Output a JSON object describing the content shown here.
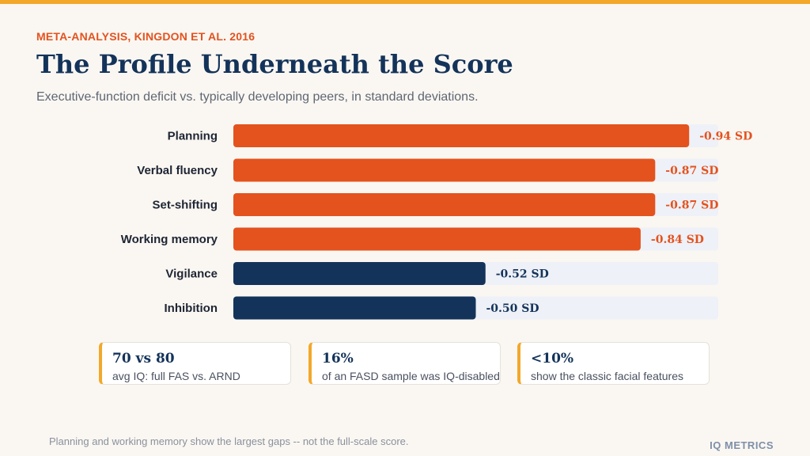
{
  "header": {
    "eyebrow": "META-ANALYSIS, KINGDON ET AL. 2016",
    "title": "The Profile Underneath the Score",
    "subtitle": "Executive-function deficit vs. typically developing peers, in standard deviations."
  },
  "chart_data": {
    "type": "bar",
    "orientation": "horizontal",
    "title": "",
    "xlabel": "",
    "ylabel": "",
    "unit": "SD",
    "categories": [
      "Planning",
      "Verbal fluency",
      "Set-shifting",
      "Working memory",
      "Vigilance",
      "Inhibition"
    ],
    "values": [
      -0.94,
      -0.87,
      -0.87,
      -0.84,
      -0.52,
      -0.5
    ],
    "value_labels": [
      "-0.94 SD",
      "-0.87 SD",
      "-0.87 SD",
      "-0.84 SD",
      "-0.52 SD",
      "-0.50 SD"
    ],
    "highlight": [
      true,
      true,
      true,
      true,
      false,
      false
    ],
    "xlim": [
      0,
      1.0
    ],
    "grid": false,
    "colors": {
      "highlight": "#E4521E",
      "normal": "#14335A",
      "track": "#EEF1F7"
    }
  },
  "stats": [
    {
      "value": "70 vs 80",
      "label": "avg IQ: full FAS vs. ARND"
    },
    {
      "value": "16%",
      "label": "of an FASD sample was IQ-disabled"
    },
    {
      "value": "<10%",
      "label": "show the classic facial features"
    }
  ],
  "footer": {
    "note": "Planning and working memory show the largest gaps -- not the full-scale score.",
    "brand": "IQ METRICS"
  },
  "colors": {
    "accent": "#F3A829",
    "orange": "#E4521E",
    "navy": "#14335A",
    "background": "#FAF7F2"
  }
}
